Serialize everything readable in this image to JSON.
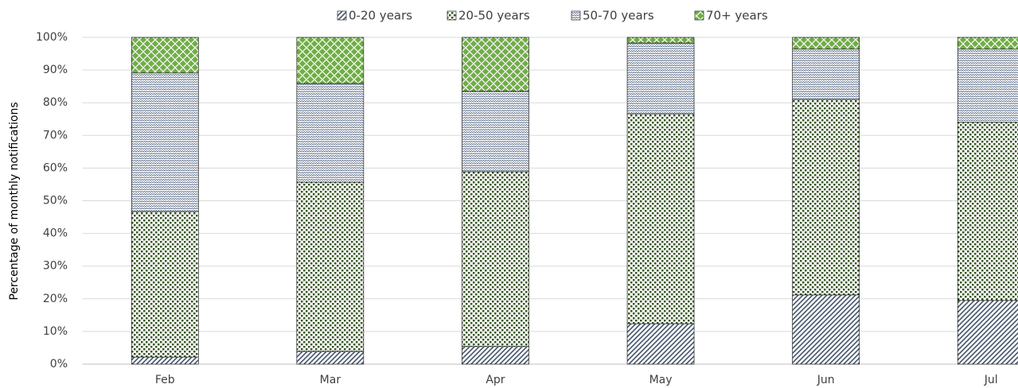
{
  "chart_data": {
    "type": "stacked_bar",
    "y_label": "Percentage of monthly notifications",
    "categories": [
      "Feb",
      "Mar",
      "Apr",
      "May",
      "Jun",
      "Jul"
    ],
    "series": [
      {
        "name": "0-20 years",
        "color": "#44546a",
        "values": [
          2.2,
          3.9,
          5.4,
          12.4,
          21.2,
          19.5
        ]
      },
      {
        "name": "20-50 years",
        "color": "#375623",
        "values": [
          44.5,
          51.8,
          53.5,
          64.2,
          59.8,
          54.5
        ]
      },
      {
        "name": "50-70 years",
        "color": "#596a86",
        "values": [
          42.4,
          30.2,
          24.6,
          21.7,
          15.4,
          22.4
        ]
      },
      {
        "name": "70+ years",
        "color": "#70ad47",
        "values": [
          10.9,
          14.1,
          16.5,
          1.7,
          3.6,
          3.6
        ]
      }
    ],
    "ylim": [
      0,
      100
    ],
    "yticks": [
      {
        "value": 0,
        "label": "0%"
      },
      {
        "value": 10,
        "label": "10%"
      },
      {
        "value": 20,
        "label": "20%"
      },
      {
        "value": 30,
        "label": "30%"
      },
      {
        "value": 40,
        "label": "40%"
      },
      {
        "value": 50,
        "label": "50%"
      },
      {
        "value": 60,
        "label": "60%"
      },
      {
        "value": 70,
        "label": "70%"
      },
      {
        "value": 80,
        "label": "80%"
      },
      {
        "value": 90,
        "label": "90%"
      },
      {
        "value": 100,
        "label": "100%"
      }
    ],
    "grid": true,
    "legend": "top"
  }
}
